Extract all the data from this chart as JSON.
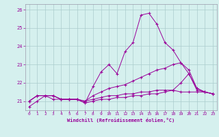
{
  "xlabel": "Windchill (Refroidissement éolien,°C)",
  "bg_color": "#d5f0ee",
  "line_color": "#990099",
  "grid_color": "#aacccc",
  "spine_color": "#9999aa",
  "ylim": [
    20.5,
    26.3
  ],
  "xlim": [
    -0.5,
    23.5
  ],
  "yticks": [
    21,
    22,
    23,
    24,
    25,
    26
  ],
  "xticks": [
    0,
    1,
    2,
    3,
    4,
    5,
    6,
    7,
    8,
    9,
    10,
    11,
    12,
    13,
    14,
    15,
    16,
    17,
    18,
    19,
    20,
    21,
    22,
    23
  ],
  "series1": [
    20.7,
    21.0,
    21.3,
    21.3,
    21.1,
    21.1,
    21.1,
    20.9,
    21.8,
    22.6,
    23.0,
    22.5,
    23.7,
    24.2,
    25.7,
    25.8,
    25.2,
    24.2,
    23.8,
    23.1,
    22.5,
    21.6,
    21.5,
    21.4
  ],
  "series2": [
    21.0,
    21.3,
    21.3,
    21.3,
    21.1,
    21.1,
    21.1,
    21.0,
    21.3,
    21.5,
    21.7,
    21.8,
    21.9,
    22.1,
    22.3,
    22.5,
    22.7,
    22.8,
    23.0,
    23.1,
    22.7,
    21.7,
    21.5,
    21.4
  ],
  "series3": [
    21.0,
    21.3,
    21.3,
    21.3,
    21.1,
    21.1,
    21.1,
    21.0,
    21.1,
    21.2,
    21.3,
    21.3,
    21.4,
    21.4,
    21.5,
    21.5,
    21.6,
    21.6,
    21.6,
    21.5,
    21.5,
    21.5,
    21.5,
    21.4
  ],
  "series4": [
    21.0,
    21.3,
    21.3,
    21.1,
    21.1,
    21.1,
    21.1,
    20.9,
    21.0,
    21.1,
    21.1,
    21.2,
    21.2,
    21.3,
    21.3,
    21.4,
    21.4,
    21.5,
    21.6,
    22.0,
    22.5,
    21.7,
    21.5,
    21.4
  ]
}
